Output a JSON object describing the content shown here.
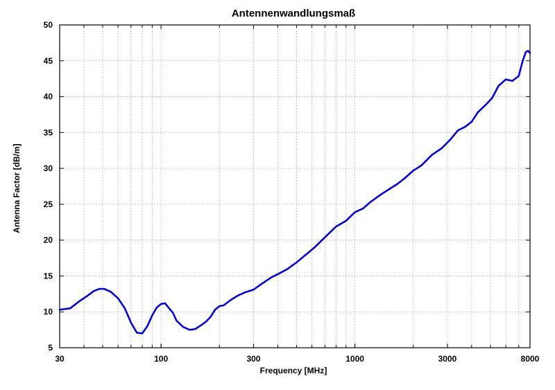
{
  "chart_data": {
    "type": "line",
    "title": "Antennenwandlungsmaß",
    "xlabel": "Frequency [MHz]",
    "ylabel": "Antenna Factor [dB/m]",
    "x_scale": "log",
    "xlim": [
      30,
      8000
    ],
    "ylim": [
      5,
      50
    ],
    "x_ticks": [
      30,
      100,
      300,
      1000,
      3000,
      8000
    ],
    "x_tick_labels": [
      "30",
      "100",
      "300",
      "1000",
      "3000",
      "8000"
    ],
    "y_ticks": [
      5,
      10,
      15,
      20,
      25,
      30,
      35,
      40,
      45,
      50
    ],
    "y_tick_labels": [
      "5",
      "10",
      "15",
      "20",
      "25",
      "30",
      "35",
      "40",
      "45",
      "50"
    ],
    "grid": true,
    "color": "#0000e6",
    "series": [
      {
        "x": [
          30,
          34,
          38,
          42,
          45,
          48,
          51,
          55,
          60,
          65,
          70,
          75,
          80,
          85,
          90,
          95,
          100,
          105,
          110,
          115,
          120,
          130,
          140,
          150,
          160,
          170,
          180,
          190,
          200,
          210,
          230,
          250,
          270,
          300,
          330,
          370,
          410,
          450,
          500,
          560,
          620,
          700,
          800,
          900,
          1000,
          1100,
          1200,
          1350,
          1500,
          1650,
          1800,
          2000,
          2200,
          2500,
          2800,
          3100,
          3400,
          3700,
          4000,
          4300,
          4700,
          5100,
          5500,
          6000,
          6500,
          7000,
          7300,
          7600,
          7800,
          8000
        ],
        "y": [
          10.3,
          10.5,
          11.5,
          12.3,
          12.9,
          13.2,
          13.2,
          12.8,
          11.9,
          10.5,
          8.5,
          7.1,
          7.0,
          8.0,
          9.5,
          10.6,
          11.1,
          11.2,
          10.5,
          9.9,
          8.8,
          7.9,
          7.5,
          7.6,
          8.1,
          8.6,
          9.3,
          10.3,
          10.8,
          10.9,
          11.7,
          12.3,
          12.7,
          13.1,
          13.9,
          14.8,
          15.4,
          16.0,
          16.9,
          18.0,
          19.0,
          20.4,
          21.9,
          22.7,
          23.9,
          24.4,
          25.3,
          26.3,
          27.1,
          27.8,
          28.6,
          29.7,
          30.4,
          31.9,
          32.8,
          34.0,
          35.3,
          35.8,
          36.5,
          37.8,
          38.8,
          39.8,
          41.5,
          42.4,
          42.2,
          42.9,
          44.8,
          46.2,
          46.4,
          46.1
        ]
      }
    ]
  }
}
